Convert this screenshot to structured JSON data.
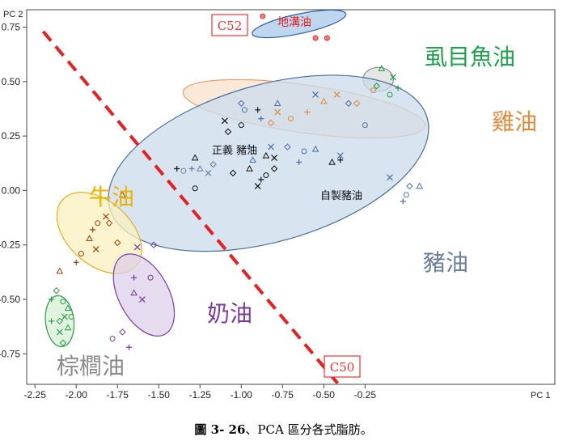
{
  "caption": {
    "label": "圖 3- 26",
    "text": "、PCA 區分各式脂肪。"
  },
  "chart_data": {
    "type": "scatter",
    "title": "",
    "xlabel": "PC 1",
    "ylabel": "PC 2",
    "xlim": [
      -2.3,
      0.9
    ],
    "ylim": [
      -0.89,
      0.83
    ],
    "x_ticks": [
      "-2.25",
      "-2.00",
      "-1.75",
      "-1.50",
      "-1.25",
      "-1.00",
      "-0.75",
      "-0.50",
      "-0.25"
    ],
    "y_ticks": [
      "0.75",
      "0.50",
      "0.25",
      "0.00",
      "-0.25",
      "-0.50",
      "-0.75"
    ],
    "grid": false,
    "colors": {
      "gutter": "#d33",
      "milkfish": "#1a9a4a",
      "chicken": "#e08a3a",
      "lard": "#6a7f9a",
      "beef": "#e8b400",
      "butter": "#7a3aa0",
      "palm": "#8a8a8a",
      "homemade": "#111111"
    },
    "labels": {
      "gutter": "地溝油",
      "milkfish": "虱目魚油",
      "chicken": "雞油",
      "lard": "豬油",
      "beef": "牛油",
      "butter": "奶油",
      "palm": "棕櫚油",
      "zhengyi": "正義 豬油",
      "homemade": "自製豬油",
      "c52": "C52",
      "c50": "C50"
    },
    "ellipses": [
      {
        "group": "gutter",
        "cx": -0.65,
        "cy": 0.765,
        "rx": 0.29,
        "ry": 0.045,
        "angle": -12,
        "fill": "#a9c8ea",
        "stroke": "#2c5fa8"
      },
      {
        "group": "milkfish",
        "cx": -0.17,
        "cy": 0.51,
        "rx": 0.092,
        "ry": 0.055,
        "angle": 0,
        "fill": "#dddddd",
        "stroke": "#888888"
      },
      {
        "group": "chicken",
        "cx": -0.62,
        "cy": 0.375,
        "rx": 0.74,
        "ry": 0.11,
        "angle": 8,
        "fill": "#f8e0cc",
        "stroke": "#e8a070"
      },
      {
        "group": "lard",
        "cx": -0.835,
        "cy": 0.125,
        "rx": 1.0,
        "ry": 0.36,
        "angle": -16,
        "fill": "#cbdcec",
        "stroke": "#4a6f98"
      },
      {
        "group": "beef",
        "cx": -1.86,
        "cy": -0.195,
        "rx": 0.3,
        "ry": 0.145,
        "angle": 42,
        "fill": "#fbf0bf",
        "stroke": "#e0b020"
      },
      {
        "group": "butter",
        "cx": -1.59,
        "cy": -0.48,
        "rx": 0.27,
        "ry": 0.115,
        "angle": 62,
        "fill": "#dcd0ea",
        "stroke": "#7a3aa0"
      },
      {
        "group": "palm",
        "cx": -2.1,
        "cy": -0.6,
        "rx": 0.155,
        "ry": 0.065,
        "angle": 84,
        "fill": "#d6f0d6",
        "stroke": "#2e9a4a"
      }
    ],
    "divider": {
      "from": [
        -2.2,
        0.73
      ],
      "to": [
        -0.4,
        -0.9
      ],
      "color": "#e62020"
    },
    "series": [
      {
        "name": "地溝油",
        "marker": "circle",
        "color": "#d33",
        "points": [
          [
            -0.87,
            0.8
          ],
          [
            -0.55,
            0.7
          ],
          [
            -0.48,
            0.7
          ]
        ]
      },
      {
        "name": "虱目魚油",
        "marker": "mixed",
        "color": "#1a9a4a",
        "points": [
          [
            -0.15,
            0.56
          ],
          [
            -0.08,
            0.52
          ],
          [
            -0.18,
            0.48
          ],
          [
            -0.1,
            0.44
          ],
          [
            -0.05,
            0.47
          ]
        ]
      },
      {
        "name": "雞油",
        "marker": "mixed",
        "color": "#e08a3a",
        "points": [
          [
            -0.78,
            0.36
          ],
          [
            -0.82,
            0.31
          ],
          [
            -0.7,
            0.33
          ],
          [
            -0.6,
            0.36
          ],
          [
            -0.5,
            0.41
          ],
          [
            -0.42,
            0.44
          ],
          [
            -0.3,
            0.4
          ],
          [
            -0.2,
            0.46
          ]
        ]
      },
      {
        "name": "豬油",
        "marker": "mixed",
        "color": "#4a6fa8",
        "points": [
          [
            -1.0,
            0.4
          ],
          [
            -0.98,
            0.37
          ],
          [
            -0.88,
            0.33
          ],
          [
            -0.78,
            0.4
          ],
          [
            -0.55,
            0.44
          ],
          [
            -0.35,
            0.4
          ],
          [
            -0.25,
            0.3
          ],
          [
            -0.95,
            0.2
          ],
          [
            -0.93,
            0.14
          ],
          [
            -0.82,
            0.2
          ],
          [
            -0.72,
            0.2
          ],
          [
            -0.62,
            0.18
          ],
          [
            -0.65,
            0.13
          ],
          [
            -0.55,
            0.19
          ],
          [
            -0.4,
            0.16
          ],
          [
            0.02,
            0.02
          ],
          [
            0.0,
            -0.02
          ],
          [
            -0.02,
            -0.05
          ],
          [
            0.08,
            0.02
          ],
          [
            -0.1,
            0.06
          ]
        ]
      },
      {
        "name": "正義 豬油",
        "marker": "mixed",
        "color": "#6a7f9a",
        "points": [
          [
            -1.35,
            0.09
          ],
          [
            -1.3,
            0.1
          ],
          [
            -1.25,
            0.1
          ],
          [
            -1.2,
            0.08
          ],
          [
            -1.17,
            0.12
          ]
        ]
      },
      {
        "name": "自製豬油",
        "marker": "mixed",
        "color": "#111111",
        "points": [
          [
            -1.39,
            0.1
          ],
          [
            -1.28,
            0.15
          ],
          [
            -1.1,
            0.32
          ],
          [
            -1.08,
            0.27
          ],
          [
            -1.0,
            0.3
          ],
          [
            -0.9,
            0.37
          ],
          [
            -0.85,
            0.16
          ],
          [
            -0.8,
            0.15
          ],
          [
            -0.8,
            0.1
          ],
          [
            -0.85,
            0.07
          ],
          [
            -0.88,
            0.05
          ],
          [
            -0.95,
            0.1
          ],
          [
            -0.9,
            0.02
          ],
          [
            -1.05,
            0.08
          ],
          [
            -1.28,
            0.01
          ],
          [
            -0.4,
            0.14
          ],
          [
            -0.45,
            0.13
          ]
        ]
      },
      {
        "name": "牛油",
        "marker": "mixed",
        "color": "#a0400a",
        "points": [
          [
            -1.72,
            -0.02
          ],
          [
            -1.82,
            -0.12
          ],
          [
            -1.8,
            -0.15
          ],
          [
            -1.87,
            -0.15
          ],
          [
            -1.9,
            -0.18
          ],
          [
            -1.92,
            -0.22
          ],
          [
            -1.88,
            -0.27
          ],
          [
            -1.75,
            -0.24
          ],
          [
            -1.97,
            -0.29
          ],
          [
            -2.0,
            -0.33
          ],
          [
            -2.1,
            -0.37
          ]
        ]
      },
      {
        "name": "奶油",
        "marker": "mixed",
        "color": "#7a3aa0",
        "points": [
          [
            -1.63,
            -0.26
          ],
          [
            -1.53,
            -0.25
          ],
          [
            -1.55,
            -0.4
          ],
          [
            -1.65,
            -0.4
          ],
          [
            -1.65,
            -0.47
          ],
          [
            -1.6,
            -0.5
          ],
          [
            -1.72,
            -0.65
          ],
          [
            -1.78,
            -0.68
          ],
          [
            -1.68,
            -0.72
          ]
        ]
      },
      {
        "name": "棕櫚油",
        "marker": "mixed",
        "color": "#2e9a4a",
        "points": [
          [
            -2.12,
            -0.46
          ],
          [
            -2.08,
            -0.51
          ],
          [
            -2.15,
            -0.5
          ],
          [
            -2.05,
            -0.54
          ],
          [
            -2.07,
            -0.58
          ],
          [
            -2.1,
            -0.6
          ],
          [
            -2.03,
            -0.58
          ],
          [
            -2.15,
            -0.6
          ],
          [
            -2.05,
            -0.63
          ],
          [
            -2.1,
            -0.65
          ],
          [
            -2.08,
            -0.7
          ]
        ]
      }
    ]
  }
}
